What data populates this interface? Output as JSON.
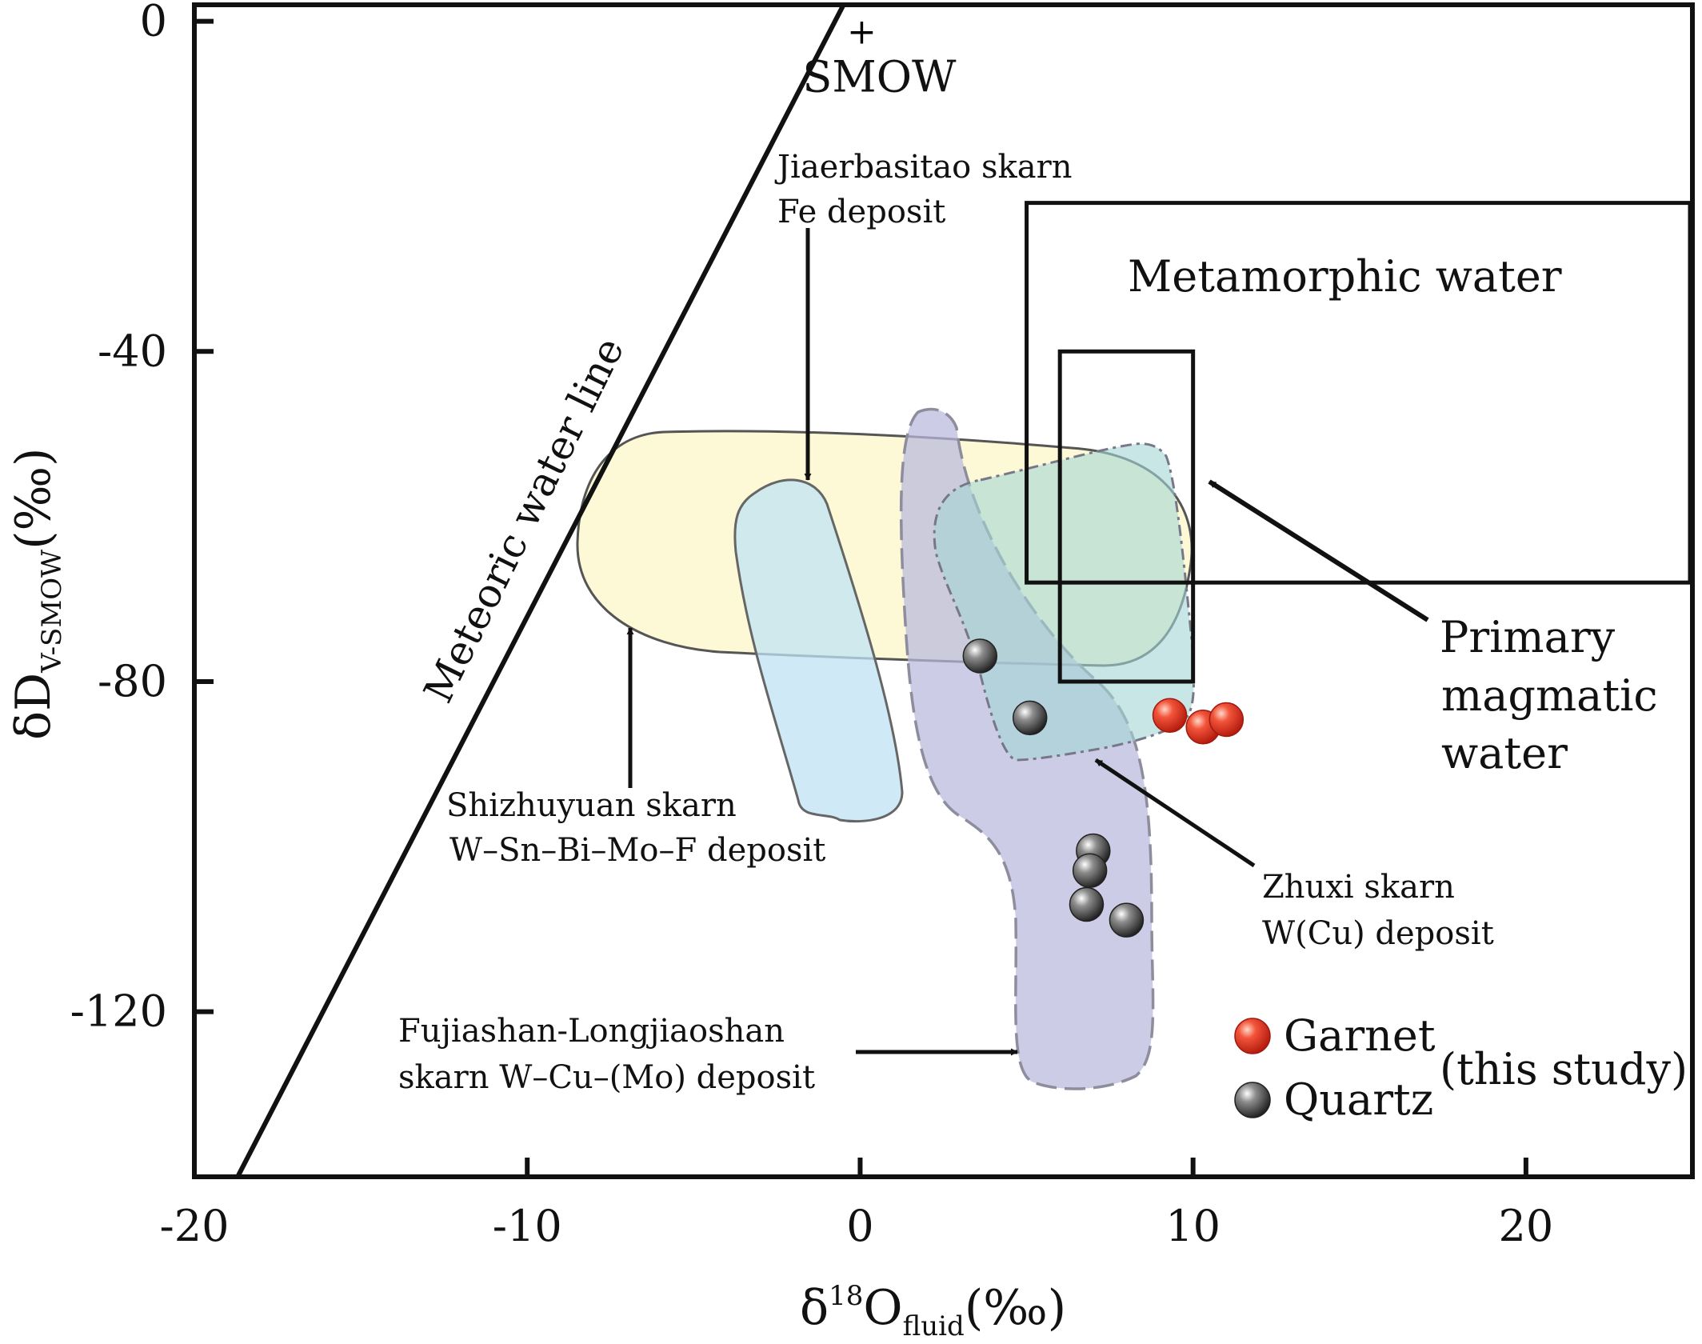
{
  "chart_data": {
    "type": "scatter",
    "title": "",
    "xlabel": {
      "main": "δ",
      "sup": "18",
      "base": "O",
      "sub": "fluid",
      "unit": "(‰)"
    },
    "ylabel": {
      "main": "δD",
      "sub": "V-SMOW",
      "unit": "(‰)"
    },
    "xlim": [
      -20,
      25
    ],
    "ylim": [
      -140,
      2
    ],
    "x_ticks": [
      -20,
      -10,
      0,
      10,
      20
    ],
    "y_ticks": [
      0,
      -40,
      -80,
      -120
    ],
    "x_tick_labels": [
      "-20",
      "-10",
      "0",
      "10",
      "20"
    ],
    "y_tick_labels": [
      "0",
      "-40",
      "-80",
      "-120"
    ],
    "grid": false,
    "legend_position": "bottom-right",
    "series": [
      {
        "name": "Garnet",
        "color": "#e8402a",
        "points": [
          [
            9.3,
            -84.1
          ],
          [
            10.3,
            -85.5
          ],
          [
            11.0,
            -84.6
          ]
        ]
      },
      {
        "name": "Quartz",
        "color": "#555555",
        "points": [
          [
            3.6,
            -76.9
          ],
          [
            5.1,
            -84.4
          ],
          [
            7.0,
            -100.5
          ],
          [
            6.9,
            -102.9
          ],
          [
            6.8,
            -107.0
          ],
          [
            8.0,
            -108.9
          ]
        ]
      }
    ],
    "legend": {
      "garnet": "Garnet",
      "quartz": "Quartz",
      "note": "(this study)"
    },
    "meteoric_line": {
      "label": "Meteoric water line",
      "x_at_top": -0.5,
      "x_at_bottom": -18.7
    },
    "smow": {
      "label": "SMOW",
      "x": 0,
      "y": 0
    },
    "boxes": {
      "metamorphic": {
        "label": "Metamorphic water",
        "x": [
          5,
          25
        ],
        "y": [
          -68,
          -22
        ]
      },
      "primary_magmatic": {
        "label_lines": [
          "Primary",
          "magmatic",
          "water"
        ],
        "x": [
          6,
          10
        ],
        "y": [
          -80,
          -40
        ]
      }
    },
    "annotations": {
      "jiaerbasitao": [
        "Jiaerbasitao skarn",
        "Fe deposit"
      ],
      "shizhuyuan": [
        "Shizhuyuan skarn",
        "W–Sn–Bi–Mo–F deposit"
      ],
      "zhuxi": [
        "Zhuxi skarn",
        "W(Cu) deposit"
      ],
      "fujiashan": [
        "Fujiashan-Longjiaoshan",
        "skarn W–Cu–(Mo) deposit"
      ]
    },
    "fields": {
      "shizhuyuan_color": "#fdf8cf",
      "jiaerbasitao_color": "#bfe3f3",
      "fujiashan_color": "#b8b9dc",
      "zhuxi_color": "#a3d6d4"
    }
  }
}
